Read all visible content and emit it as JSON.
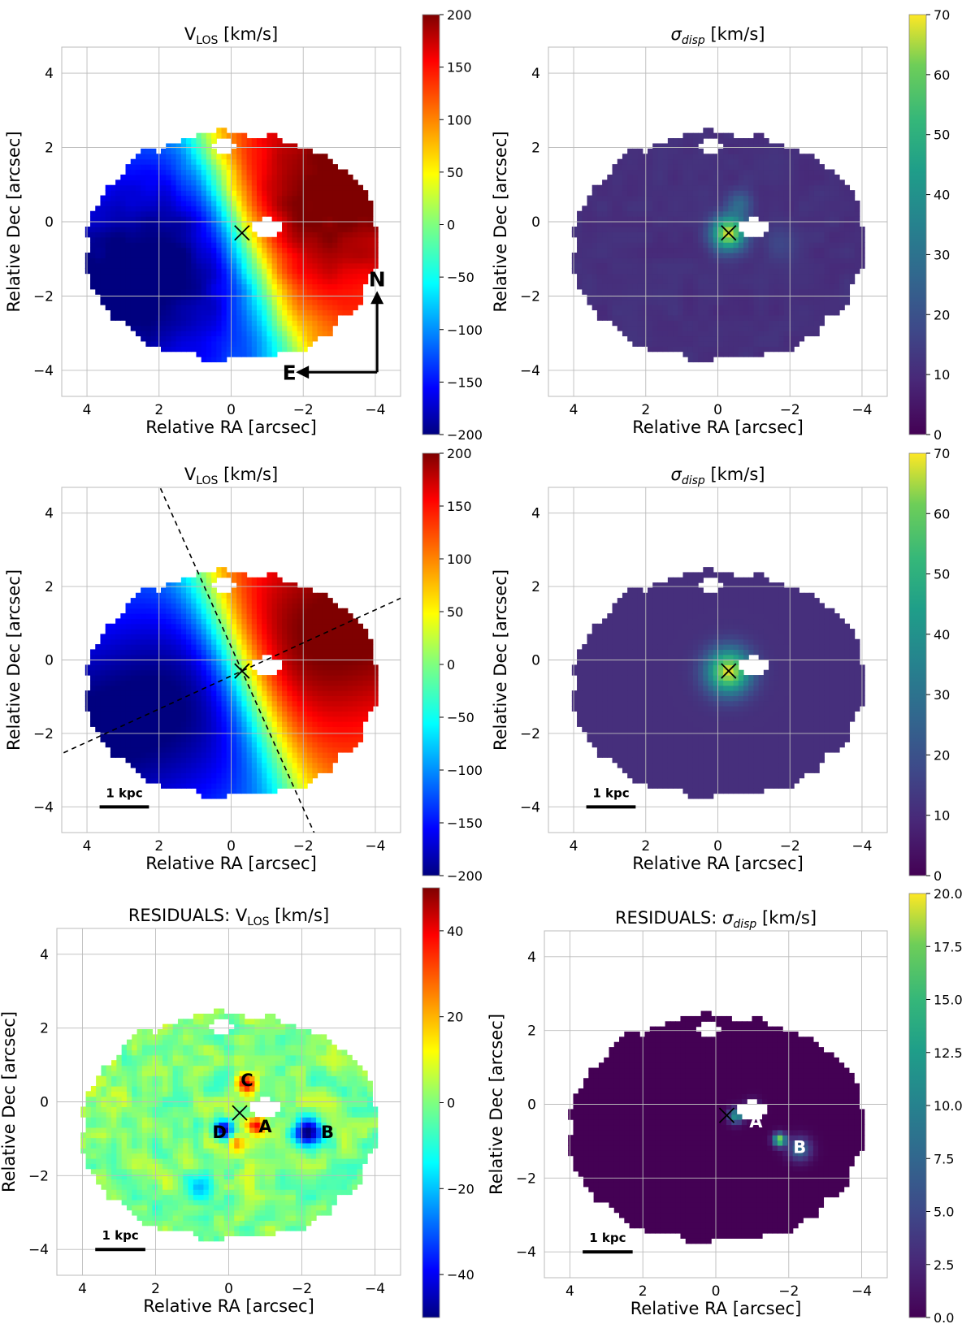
{
  "axes_common": {
    "xlabel": "Relative RA [arcsec]",
    "ylabel": "Relative Dec [arcsec]",
    "xticks": [
      4,
      2,
      0,
      -2,
      -4
    ],
    "yticks": [
      4,
      2,
      0,
      -2,
      -4
    ],
    "xlim": [
      4.7,
      -4.7
    ],
    "ylim": [
      -4.7,
      4.7
    ],
    "grid": true,
    "center": [
      -0.3,
      -0.3
    ]
  },
  "chart_data": [
    {
      "id": "p11",
      "type": "heatmap",
      "title_main": "V",
      "title_sub": "LOS",
      "title_rest": " [km/s]",
      "colormap": "jet",
      "clim": [
        -200,
        200
      ],
      "colorbar_ticks": [
        200,
        150,
        100,
        50,
        0,
        -50,
        -100,
        -150,
        -200
      ],
      "field": "velocity",
      "compass": {
        "north_label": "N",
        "east_label": "E"
      }
    },
    {
      "id": "p12",
      "type": "heatmap",
      "title_main": "σ",
      "title_sub": "disp",
      "title_rest": " [km/s]",
      "colormap": "viridis",
      "clim": [
        0,
        70
      ],
      "colorbar_ticks": [
        70,
        60,
        50,
        40,
        30,
        20,
        10,
        0
      ],
      "field": "dispersion"
    },
    {
      "id": "p21",
      "type": "heatmap",
      "title_main": "V",
      "title_sub": "LOS",
      "title_rest": " [km/s]",
      "colormap": "jet",
      "clim": [
        -200,
        200
      ],
      "colorbar_ticks": [
        200,
        150,
        100,
        50,
        0,
        -50,
        -100,
        -150,
        -200
      ],
      "field": "velocity_model",
      "axes_lines": {
        "major_slope": -0.45,
        "minor_slope": 2.2
      },
      "scalebar_label": "1 kpc"
    },
    {
      "id": "p22",
      "type": "heatmap",
      "title_main": "σ",
      "title_sub": "disp",
      "title_rest": " [km/s]",
      "colormap": "viridis",
      "clim": [
        0,
        70
      ],
      "colorbar_ticks": [
        70,
        60,
        50,
        40,
        30,
        20,
        10,
        0
      ],
      "field": "dispersion_model",
      "scalebar_label": "1 kpc"
    },
    {
      "id": "p31",
      "type": "heatmap",
      "title_pre": "RESIDUALS: ",
      "title_main": "V",
      "title_sub": "LOS",
      "title_rest": " [km/s]",
      "colormap": "jet",
      "clim": [
        -50,
        50
      ],
      "colorbar_ticks": [
        40,
        20,
        0,
        -20,
        -40
      ],
      "field": "velocity_residual",
      "scalebar_label": "1 kpc",
      "annotations": [
        {
          "text": "C",
          "x": -0.5,
          "y": 0.6
        },
        {
          "text": "A",
          "x": -1.0,
          "y": -0.65
        },
        {
          "text": "D",
          "x": 0.25,
          "y": -0.8
        },
        {
          "text": "B",
          "x": -2.7,
          "y": -0.8
        }
      ]
    },
    {
      "id": "p32",
      "type": "heatmap",
      "title_pre": "RESIDUALS: ",
      "title_main": "σ",
      "title_sub": "disp",
      "title_rest": " [km/s]",
      "colormap": "viridis",
      "clim": [
        0,
        20
      ],
      "colorbar_ticks": [
        "20.0",
        "17.5",
        "15.0",
        "12.5",
        "10.0",
        "7.5",
        "5.0",
        "2.5",
        "0.0"
      ],
      "field": "dispersion_residual",
      "scalebar_label": "1 kpc",
      "annotations": [
        {
          "text": "A",
          "x": -1.1,
          "y": -0.45
        },
        {
          "text": "B",
          "x": -2.3,
          "y": -1.15
        }
      ]
    }
  ]
}
